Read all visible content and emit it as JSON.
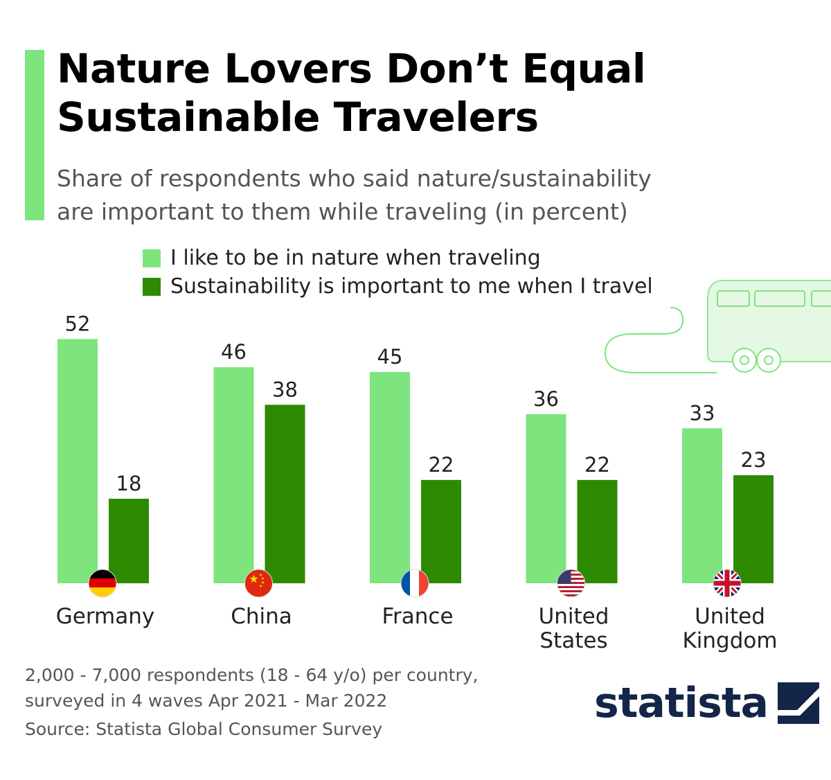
{
  "title_lines": [
    "Nature Lovers Don’t Equal",
    "Sustainable Travelers"
  ],
  "subtitle_lines": [
    "Share of respondents who said nature/sustainability",
    "are important to them while traveling (in percent)"
  ],
  "legend": [
    {
      "label": "I like to be in nature when traveling",
      "color": "#7ee47e"
    },
    {
      "label": "Sustainability is important to me when I travel",
      "color": "#2e8a00"
    }
  ],
  "chart_data": {
    "type": "bar",
    "title": "Nature Lovers Don’t Equal Sustainable Travelers",
    "subtitle": "Share of respondents who said nature/sustainability are important to them while traveling (in percent)",
    "categories": [
      "Germany",
      "China",
      "France",
      "United States",
      "United Kingdom"
    ],
    "category_lines": [
      [
        "Germany"
      ],
      [
        "China"
      ],
      [
        "France"
      ],
      [
        "United",
        "States"
      ],
      [
        "United",
        "Kingdom"
      ]
    ],
    "flags": [
      "germany-flag",
      "china-flag",
      "france-flag",
      "usa-flag",
      "uk-flag"
    ],
    "series": [
      {
        "name": "I like to be in nature when traveling",
        "values": [
          52,
          46,
          45,
          36,
          33
        ],
        "color": "#7ee47e"
      },
      {
        "name": "Sustainability is important to me when I travel",
        "values": [
          18,
          38,
          22,
          22,
          23
        ],
        "color": "#2e8a00"
      }
    ],
    "ylim": [
      0,
      100
    ],
    "xlabel": "",
    "ylabel": "",
    "grid": false,
    "legend_position": "top-left"
  },
  "footnote_lines": [
    "2,000 - 7,000 respondents (18 - 64 y/o) per country,",
    "surveyed in 4 waves Apr 2021 - Mar 2022"
  ],
  "source": "Source: Statista Global Consumer Survey",
  "brand": {
    "name": "statista",
    "color": "#14254a"
  },
  "illustration": {
    "icon": "bus-icon",
    "color": "#7ee47e"
  }
}
